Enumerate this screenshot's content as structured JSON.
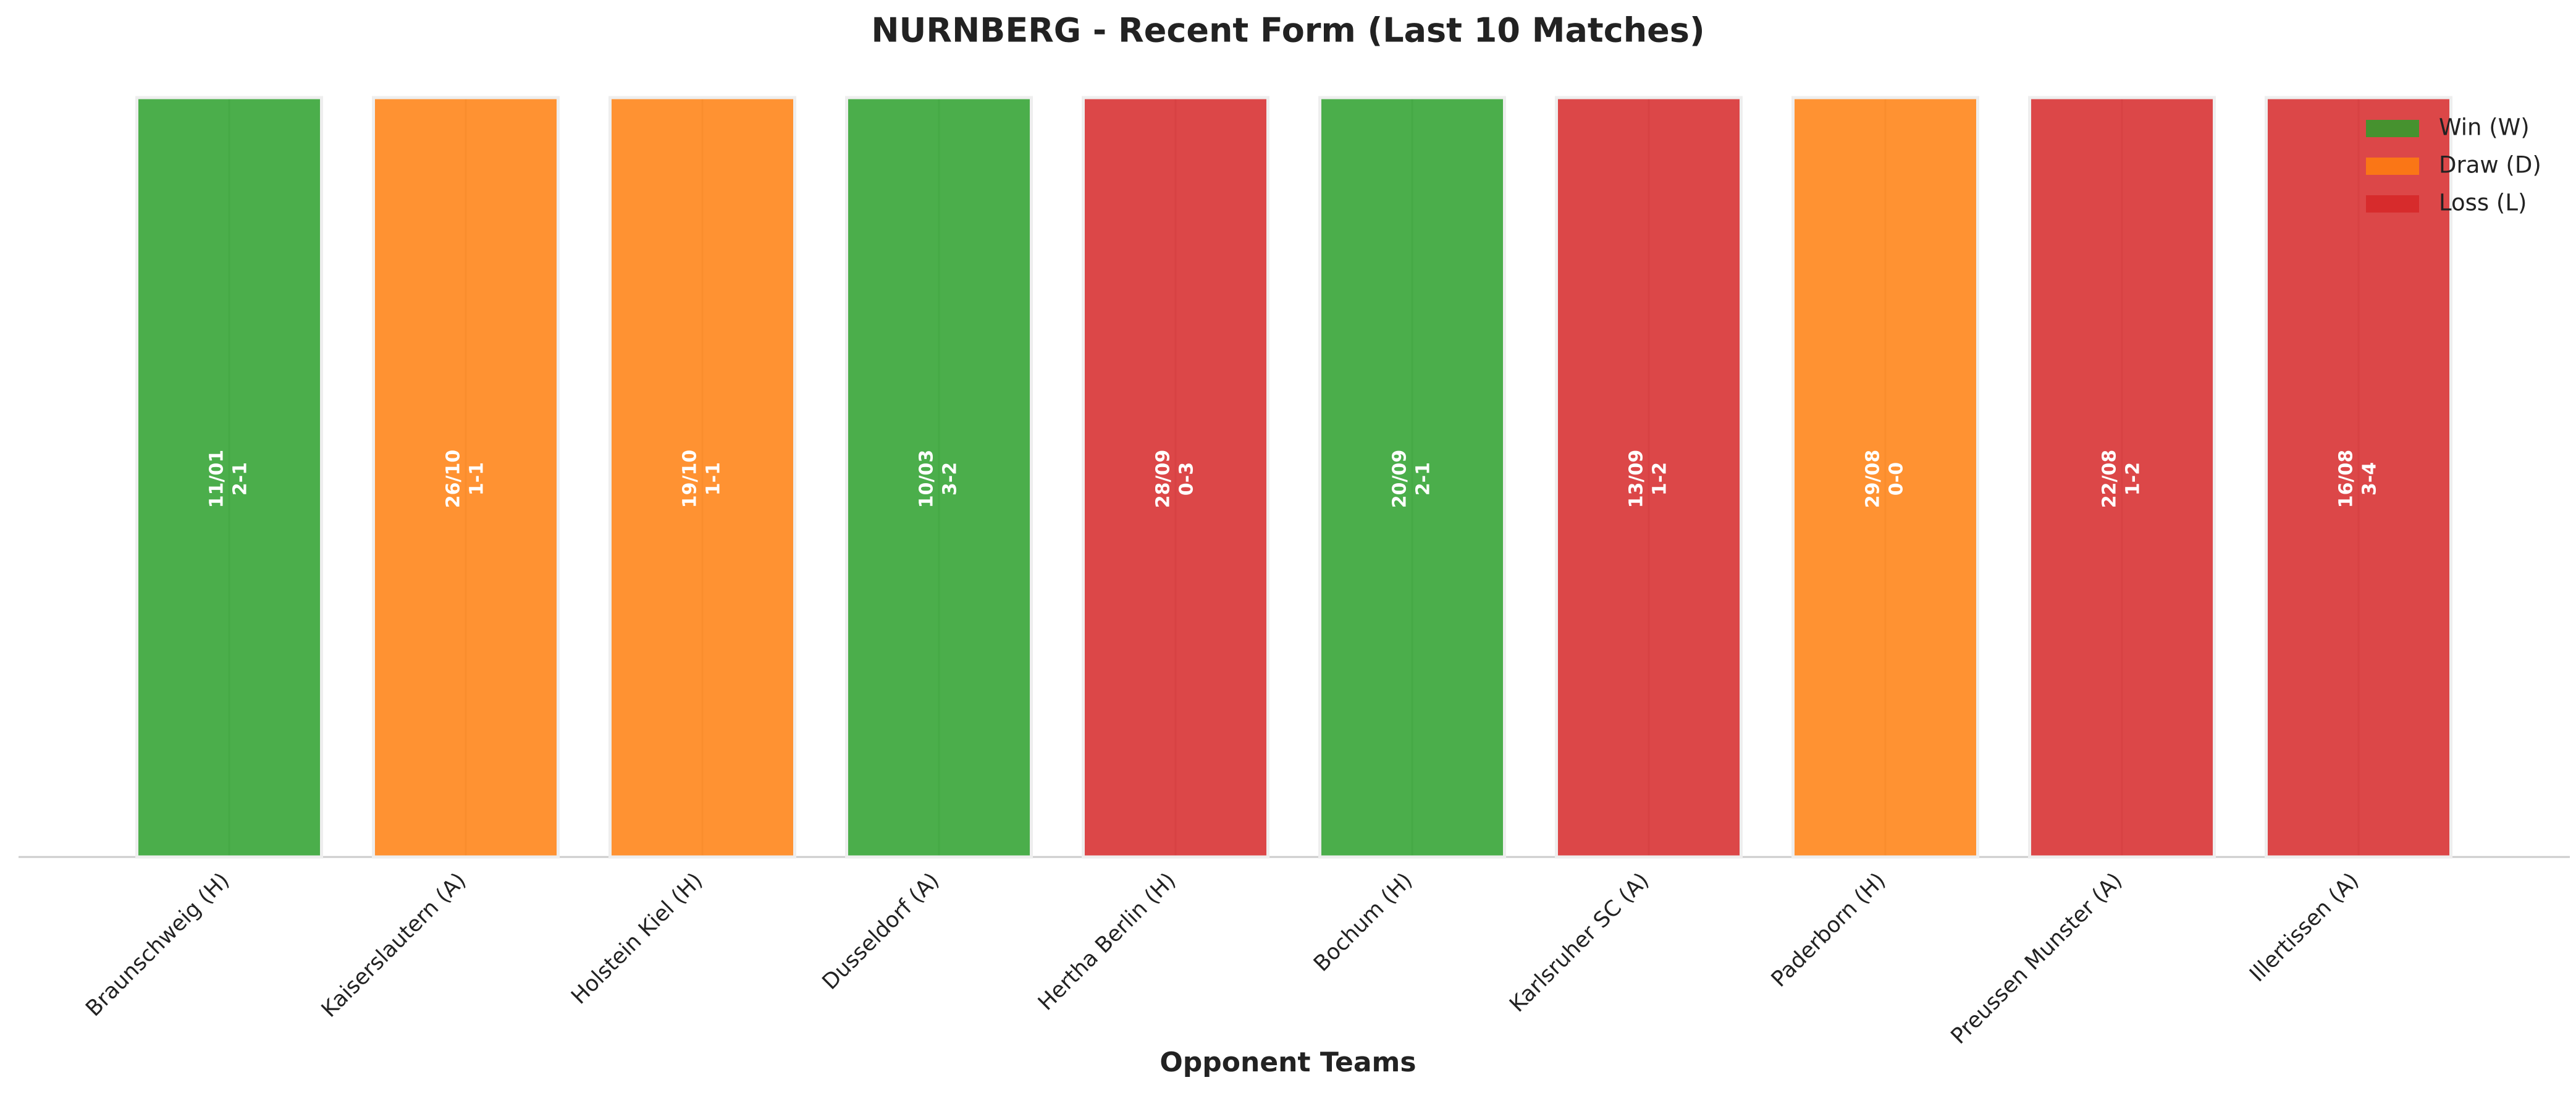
{
  "chart_data": {
    "type": "bar",
    "title": "NURNBERG - Recent Form (Last 10 Matches)",
    "x_label": "Opponent Teams",
    "categories": [
      "Braunschweig (H)",
      "Kaiserslautern (A)",
      "Holstein Kiel (H)",
      "Dusseldorf (A)",
      "Hertha Berlin (H)",
      "Bochum (H)",
      "Karlsruher SC (A)",
      "Paderborn (H)",
      "Preussen Munster (A)",
      "Illertissen (A)"
    ],
    "dates": [
      "11/01",
      "26/10",
      "19/10",
      "10/03",
      "28/09",
      "20/09",
      "13/09",
      "29/08",
      "22/08",
      "16/08"
    ],
    "scores": [
      "2-1",
      "1-1",
      "1-1",
      "3-2",
      "0-3",
      "2-1",
      "1-2",
      "0-0",
      "1-2",
      "3-4"
    ],
    "series": [
      {
        "name": "Win (W)",
        "color": "#2ca02c",
        "values": [
          1,
          null,
          null,
          1,
          null,
          1,
          null,
          null,
          null,
          null
        ]
      },
      {
        "name": "Draw (D)",
        "color": "#ff7f0e",
        "values": [
          null,
          1,
          1,
          null,
          null,
          null,
          null,
          1,
          null,
          null
        ]
      },
      {
        "name": "Loss (L)",
        "color": "#d62728",
        "values": [
          null,
          null,
          null,
          null,
          1,
          null,
          1,
          null,
          1,
          1
        ]
      }
    ],
    "ylim": [
      0,
      1
    ],
    "xgrid": true,
    "legend": "upper right"
  }
}
